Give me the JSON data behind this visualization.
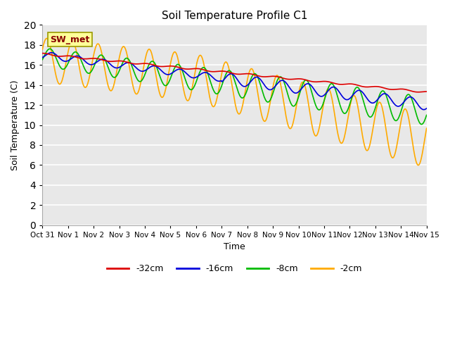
{
  "title": "Soil Temperature Profile C1",
  "xlabel": "Time",
  "ylabel": "Soil Temperature (C)",
  "ylim": [
    0,
    20
  ],
  "yticks": [
    0,
    2,
    4,
    6,
    8,
    10,
    12,
    14,
    16,
    18,
    20
  ],
  "x_labels": [
    "Oct 31",
    "Nov 1",
    "Nov 2",
    "Nov 3",
    "Nov 4",
    "Nov 5",
    "Nov 6",
    "Nov 7",
    "Nov 8",
    "Nov 9",
    "Nov 10",
    "Nov 11",
    "Nov 12",
    "Nov 13",
    "Nov 14",
    "Nov 15"
  ],
  "colors": {
    "-32cm": "#dd0000",
    "-16cm": "#0000dd",
    "-8cm": "#00bb00",
    "-2cm": "#ffaa00"
  },
  "annotation_text": "SW_met",
  "annotation_box_color": "#ffff99",
  "annotation_text_color": "#880000",
  "background_color": "#e8e8e8"
}
